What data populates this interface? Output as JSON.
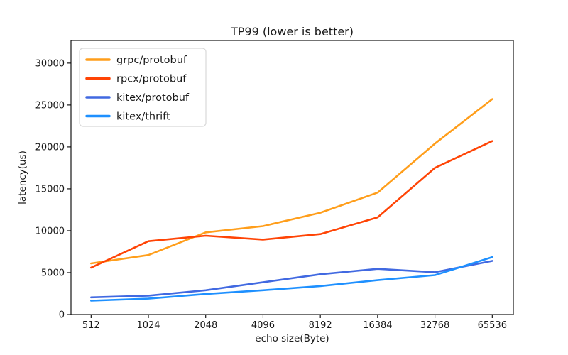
{
  "chart_data": {
    "type": "line",
    "title": "TP99 (lower is better)",
    "xlabel": "echo size(Byte)",
    "ylabel": "latency(us)",
    "categories": [
      "512",
      "1024",
      "2048",
      "4096",
      "8192",
      "16384",
      "32768",
      "65536"
    ],
    "y_ticks": [
      0,
      5000,
      10000,
      15000,
      20000,
      25000,
      30000
    ],
    "ylim": [
      0,
      32700
    ],
    "grid": false,
    "legend_position": "upper-left",
    "background_color": "#ffffff",
    "axis_color": "#000000",
    "series": [
      {
        "name": "grpc/protobuf",
        "color": "#ff9e1b",
        "values": [
          6100,
          7100,
          9800,
          10550,
          12150,
          14550,
          20400,
          25700
        ]
      },
      {
        "name": "rpcx/protobuf",
        "color": "#ff4405",
        "values": [
          5600,
          8750,
          9400,
          8950,
          9600,
          11600,
          17500,
          20700
        ]
      },
      {
        "name": "kitex/protobuf",
        "color": "#4169e1",
        "values": [
          2050,
          2250,
          2900,
          3850,
          4800,
          5450,
          5050,
          6400
        ]
      },
      {
        "name": "kitex/thrift",
        "color": "#1e90ff",
        "values": [
          1650,
          1900,
          2450,
          2900,
          3400,
          4100,
          4700,
          6850
        ]
      }
    ]
  }
}
